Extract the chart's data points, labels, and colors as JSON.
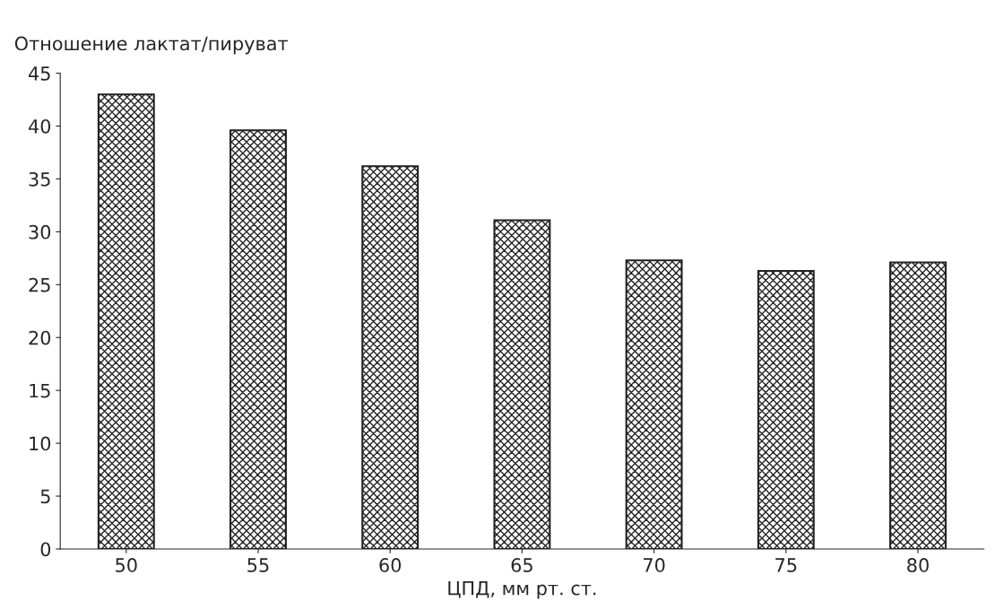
{
  "chart_data": {
    "type": "bar",
    "ylabel": "Отношение лактат/пируват",
    "xlabel": "ЦПД, мм рт. ст.",
    "categories": [
      "50",
      "55",
      "60",
      "65",
      "70",
      "75",
      "80"
    ],
    "values": [
      43.0,
      39.6,
      36.2,
      31.1,
      27.3,
      26.3,
      27.1
    ],
    "color": "#222222",
    "ylim": [
      0,
      45
    ],
    "yticks": [
      0,
      5,
      10,
      15,
      20,
      25,
      30,
      35,
      40,
      45
    ],
    "grid": false,
    "legend": false
  }
}
